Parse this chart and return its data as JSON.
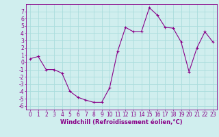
{
  "x": [
    0,
    1,
    2,
    3,
    4,
    5,
    6,
    7,
    8,
    9,
    10,
    11,
    12,
    13,
    14,
    15,
    16,
    17,
    18,
    19,
    20,
    21,
    22,
    23
  ],
  "y": [
    0.5,
    0.8,
    -1.0,
    -1.0,
    -1.5,
    -4.0,
    -4.8,
    -5.2,
    -5.5,
    -5.5,
    -3.5,
    1.5,
    4.8,
    4.2,
    4.2,
    7.5,
    6.5,
    4.8,
    4.7,
    2.8,
    -1.3,
    2.0,
    4.2,
    2.8
  ],
  "line_color": "#880088",
  "marker": "+",
  "bg_color": "#d0eeee",
  "grid_color": "#aadddd",
  "axis_color": "#880088",
  "xlabel": "Windchill (Refroidissement éolien,°C)",
  "xlabel_fontsize": 6.0,
  "tick_fontsize": 5.5,
  "ylim": [
    -6.5,
    8.0
  ],
  "xlim": [
    -0.5,
    23.5
  ],
  "yticks": [
    -6,
    -5,
    -4,
    -3,
    -2,
    -1,
    0,
    1,
    2,
    3,
    4,
    5,
    6,
    7
  ],
  "xticks": [
    0,
    1,
    2,
    3,
    4,
    5,
    6,
    7,
    8,
    9,
    10,
    11,
    12,
    13,
    14,
    15,
    16,
    17,
    18,
    19,
    20,
    21,
    22,
    23
  ]
}
